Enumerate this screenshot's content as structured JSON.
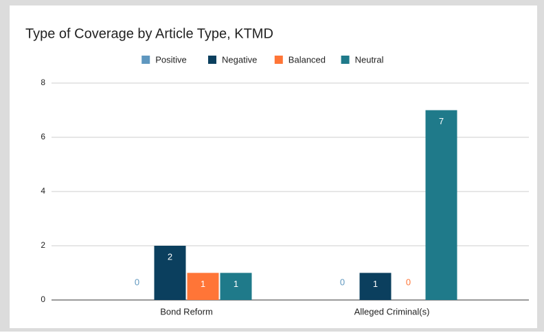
{
  "chart_data": {
    "type": "bar",
    "title": "Type of Coverage by Article Type, KTMD",
    "categories": [
      "Bond Reform",
      "Alleged Criminal(s)"
    ],
    "series": [
      {
        "name": "Positive",
        "color": "#5f97bf",
        "values": [
          0,
          0
        ]
      },
      {
        "name": "Negative",
        "color": "#0b3f5e",
        "values": [
          2,
          1
        ]
      },
      {
        "name": "Balanced",
        "color": "#ff7537",
        "values": [
          1,
          0
        ]
      },
      {
        "name": "Neutral",
        "color": "#1f7a8a",
        "values": [
          1,
          7
        ]
      }
    ],
    "ylim": [
      0,
      8
    ],
    "yticks": [
      0,
      2,
      4,
      6,
      8
    ],
    "grid": true,
    "legend": "top"
  }
}
